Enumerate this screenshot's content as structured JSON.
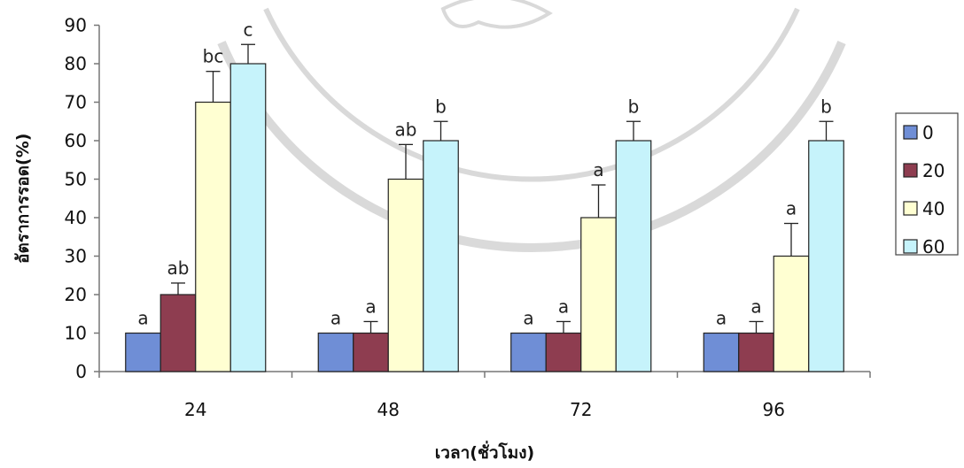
{
  "chart_data": {
    "type": "bar",
    "categories": [
      "24",
      "48",
      "72",
      "96"
    ],
    "series": [
      {
        "name": "0",
        "color": "#6f8ed6",
        "values": [
          10,
          10,
          10,
          10
        ],
        "errors": [
          0,
          0,
          0,
          0
        ],
        "labels": [
          "a",
          "a",
          "a",
          "a"
        ]
      },
      {
        "name": "20",
        "color": "#8e3d50",
        "values": [
          20,
          10,
          10,
          10
        ],
        "errors": [
          3,
          3,
          3,
          3
        ],
        "labels": [
          "ab",
          "a",
          "a",
          "a"
        ]
      },
      {
        "name": "40",
        "color": "#ffffd2",
        "values": [
          70,
          50,
          40,
          30
        ],
        "errors": [
          8,
          9,
          8.5,
          8.5
        ],
        "labels": [
          "bc",
          "ab",
          "a",
          "a"
        ]
      },
      {
        "name": "60",
        "color": "#c6f3fb",
        "values": [
          80,
          60,
          60,
          60
        ],
        "errors": [
          5,
          5,
          5,
          5
        ],
        "labels": [
          "c",
          "b",
          "b",
          "b"
        ]
      }
    ],
    "xlabel": "เวลา(ชั่วโมง)",
    "ylabel": "อัตราการรอด(%)",
    "ylim": [
      0,
      90
    ],
    "yticks": [
      0,
      10,
      20,
      30,
      40,
      50,
      60,
      70,
      80,
      90
    ],
    "grid": false,
    "legend": "right"
  }
}
